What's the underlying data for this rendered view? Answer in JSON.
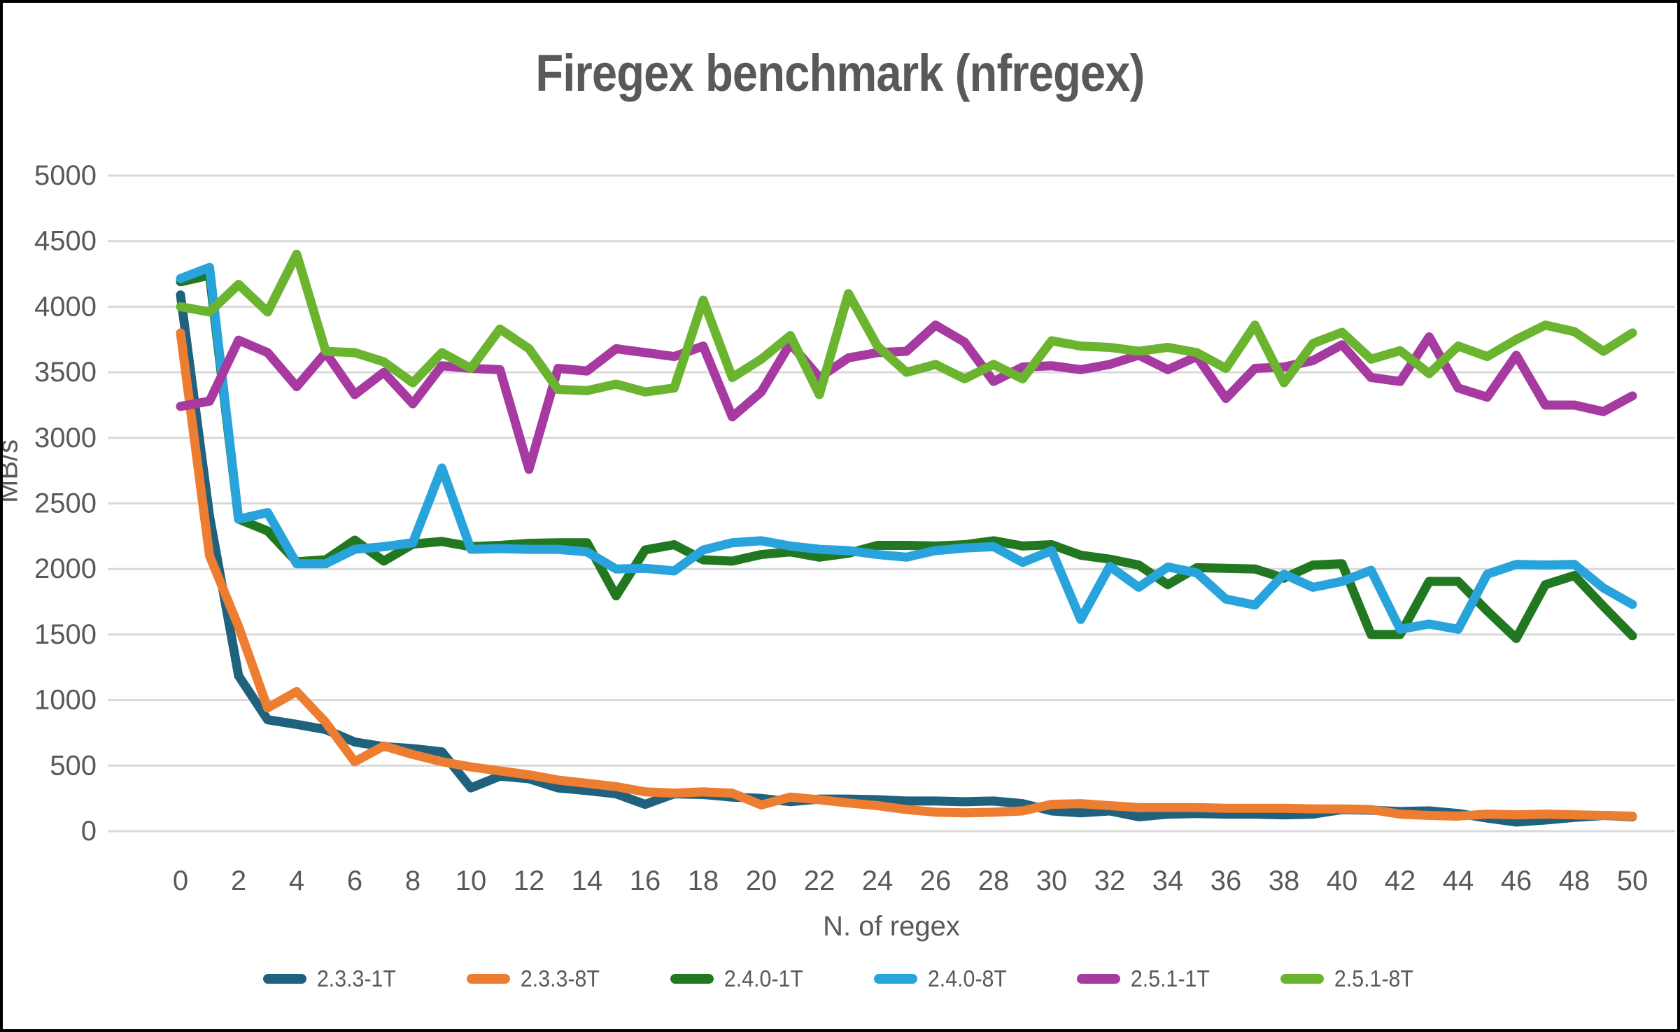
{
  "title": "Firegex benchmark (nfregex)",
  "colors": {
    "background": "#FFFFFF",
    "border": "#000000",
    "gridline": "#D9D9D9",
    "axis_text": "#595959",
    "title_text": "#595959"
  },
  "chart_data": {
    "type": "line",
    "title": "Firegex benchmark (nfregex)",
    "xlabel": "N. of regex",
    "ylabel": "MB/s",
    "xlim": [
      0,
      50
    ],
    "ylim": [
      0,
      5000
    ],
    "x_ticks": [
      0,
      2,
      4,
      6,
      8,
      10,
      12,
      14,
      16,
      18,
      20,
      22,
      24,
      26,
      28,
      30,
      32,
      34,
      36,
      38,
      40,
      42,
      44,
      46,
      48,
      50
    ],
    "y_ticks": [
      0,
      500,
      1000,
      1500,
      2000,
      2500,
      3000,
      3500,
      4000,
      4500,
      5000
    ],
    "grid": "horizontal",
    "legend_position": "bottom",
    "x": [
      0,
      1,
      2,
      3,
      4,
      5,
      6,
      7,
      8,
      9,
      10,
      11,
      12,
      13,
      14,
      15,
      16,
      17,
      18,
      19,
      20,
      21,
      22,
      23,
      24,
      25,
      26,
      27,
      28,
      29,
      30,
      31,
      32,
      33,
      34,
      35,
      36,
      37,
      38,
      39,
      40,
      41,
      42,
      43,
      44,
      45,
      46,
      47,
      48,
      49,
      50
    ],
    "series": [
      {
        "name": "2.3.3-1T",
        "color": "#20617D",
        "values": [
          4090,
          2400,
          1185,
          850,
          815,
          775,
          680,
          645,
          630,
          605,
          330,
          420,
          400,
          330,
          310,
          285,
          205,
          285,
          280,
          260,
          250,
          225,
          245,
          245,
          240,
          230,
          230,
          225,
          230,
          210,
          155,
          140,
          155,
          110,
          130,
          135,
          130,
          130,
          125,
          130,
          165,
          160,
          150,
          155,
          135,
          100,
          70,
          85,
          105,
          120,
          110
        ]
      },
      {
        "name": "2.3.3-8T",
        "color": "#ED7D31",
        "values": [
          3800,
          2100,
          1560,
          940,
          1065,
          830,
          530,
          650,
          585,
          530,
          490,
          460,
          430,
          390,
          365,
          340,
          300,
          290,
          300,
          290,
          200,
          260,
          240,
          215,
          195,
          165,
          145,
          140,
          145,
          155,
          205,
          210,
          195,
          180,
          180,
          180,
          175,
          175,
          175,
          170,
          170,
          165,
          130,
          120,
          115,
          130,
          125,
          130,
          125,
          120,
          115
        ]
      },
      {
        "name": "2.4.0-1T",
        "color": "#217821",
        "values": [
          4190,
          4240,
          2380,
          2290,
          2055,
          2070,
          2220,
          2060,
          2190,
          2210,
          2170,
          2180,
          2195,
          2200,
          2200,
          1795,
          2145,
          2185,
          2070,
          2060,
          2110,
          2130,
          2090,
          2120,
          2180,
          2180,
          2175,
          2185,
          2215,
          2175,
          2185,
          2105,
          2075,
          2030,
          1880,
          2010,
          2005,
          2000,
          1930,
          2030,
          2040,
          1500,
          1500,
          1905,
          1905,
          1680,
          1470,
          1880,
          1950,
          1715,
          1490
        ]
      },
      {
        "name": "2.4.0-8T",
        "color": "#29A3DC",
        "values": [
          4215,
          4300,
          2380,
          2430,
          2040,
          2040,
          2150,
          2170,
          2200,
          2770,
          2150,
          2155,
          2150,
          2150,
          2130,
          2000,
          2005,
          1985,
          2145,
          2200,
          2215,
          2175,
          2150,
          2140,
          2110,
          2090,
          2140,
          2160,
          2170,
          2050,
          2140,
          1615,
          2020,
          1860,
          2015,
          1970,
          1770,
          1725,
          1960,
          1860,
          1905,
          1990,
          1540,
          1580,
          1540,
          1960,
          2035,
          2030,
          2035,
          1855,
          1730
        ]
      },
      {
        "name": "2.5.1-1T",
        "color": "#A63AA0",
        "values": [
          3240,
          3280,
          3745,
          3650,
          3390,
          3650,
          3330,
          3500,
          3260,
          3550,
          3530,
          3520,
          2760,
          3530,
          3510,
          3680,
          3650,
          3620,
          3700,
          3160,
          3350,
          3720,
          3460,
          3610,
          3650,
          3660,
          3860,
          3730,
          3430,
          3540,
          3550,
          3520,
          3560,
          3630,
          3520,
          3620,
          3300,
          3530,
          3540,
          3590,
          3710,
          3460,
          3430,
          3770,
          3380,
          3310,
          3630,
          3250,
          3250,
          3200,
          3320
        ]
      },
      {
        "name": "2.5.1-8T",
        "color": "#6AB42F",
        "values": [
          4000,
          3960,
          4170,
          3960,
          4400,
          3660,
          3650,
          3580,
          3420,
          3650,
          3530,
          3830,
          3680,
          3370,
          3360,
          3410,
          3350,
          3380,
          4050,
          3460,
          3600,
          3780,
          3330,
          4100,
          3700,
          3500,
          3560,
          3450,
          3560,
          3450,
          3740,
          3700,
          3690,
          3660,
          3690,
          3650,
          3530,
          3860,
          3420,
          3720,
          3805,
          3600,
          3665,
          3490,
          3700,
          3620,
          3750,
          3860,
          3810,
          3660,
          3800
        ]
      }
    ]
  }
}
